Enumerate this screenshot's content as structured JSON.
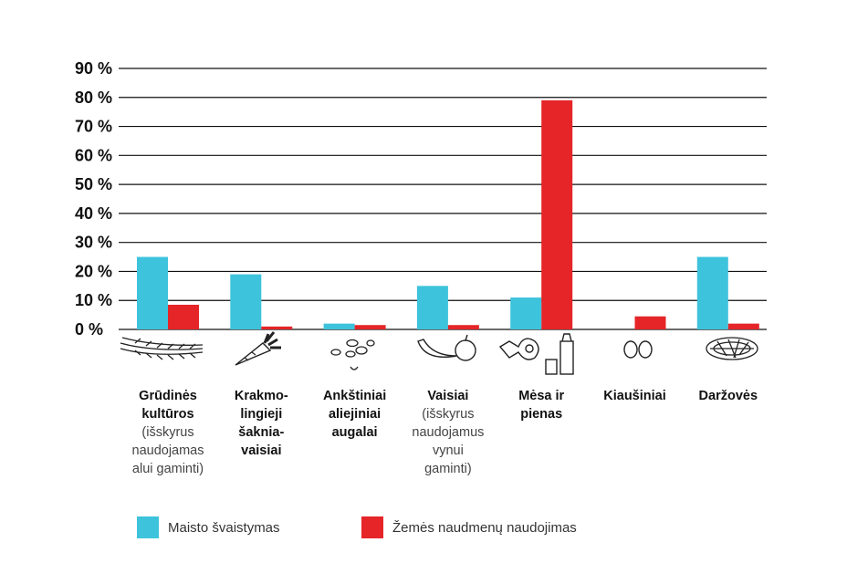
{
  "colors": {
    "food_waste": "#3ec3dc",
    "land_use": "#e52528",
    "axis": "#111111"
  },
  "chart_data": {
    "type": "bar",
    "ylim": [
      0,
      90
    ],
    "yticks": [
      0,
      10,
      20,
      30,
      40,
      50,
      60,
      70,
      80,
      90
    ],
    "ytick_labels": [
      "0 %",
      "10 %",
      "20 %",
      "30 %",
      "40 %",
      "50 %",
      "60 %",
      "70 %",
      "80 %",
      "90 %"
    ],
    "grid": true,
    "categories": [
      {
        "bold": [
          "Grūdinės",
          "kultūros"
        ],
        "sub": [
          "(išskyrus",
          "naudojamas",
          "alui gaminti)"
        ],
        "icon": "wheat-icon"
      },
      {
        "bold": [
          "Krakmo-",
          "lingieji",
          "šaknia-",
          "vaisiai"
        ],
        "sub": [],
        "icon": "carrot-icon"
      },
      {
        "bold": [
          "Ankštiniai",
          "aliejiniai",
          "augalai"
        ],
        "sub": [],
        "icon": "beans-icon"
      },
      {
        "bold": [
          "Vaisiai"
        ],
        "sub": [
          "(išskyrus",
          "naudojamus",
          "vynui",
          "gaminti)"
        ],
        "icon": "banana-apple-icon"
      },
      {
        "bold": [
          "Mėsa ir",
          "pienas"
        ],
        "sub": [],
        "icon": "meat-milk-icon"
      },
      {
        "bold": [
          "Kiaušiniai"
        ],
        "sub": [],
        "icon": "eggs-icon"
      },
      {
        "bold": [
          "Daržovės"
        ],
        "sub": [],
        "icon": "vegetables-icon"
      }
    ],
    "series": [
      {
        "name": "Maisto švaistymas",
        "values": [
          25,
          19,
          2,
          15,
          11,
          0,
          25
        ]
      },
      {
        "name": "Žemės naudmenų naudojimas",
        "values": [
          8.5,
          1,
          1.5,
          1.5,
          79,
          4.5,
          2
        ]
      }
    ],
    "legend_placement": "bottom"
  }
}
